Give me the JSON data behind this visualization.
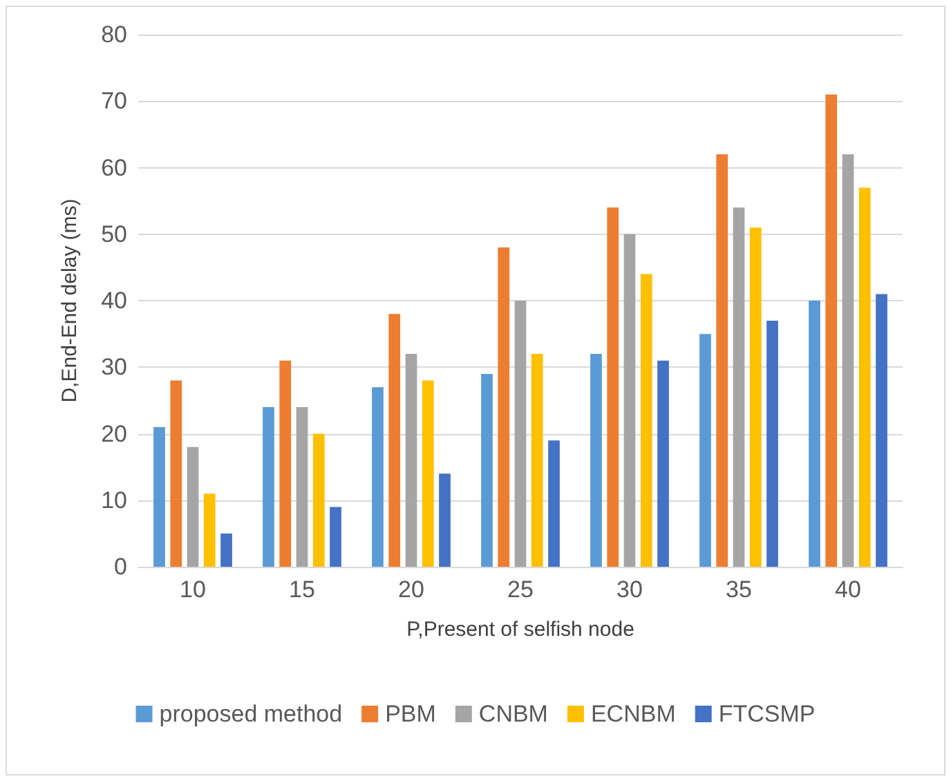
{
  "chart_data": {
    "type": "bar",
    "xlabel": "P,Present of selfish node",
    "ylabel": "D,End-End delay (ms)",
    "categories": [
      "10",
      "15",
      "20",
      "25",
      "30",
      "35",
      "40"
    ],
    "series": [
      {
        "name": "proposed method",
        "color": "#5b9bd5",
        "values": [
          21,
          24,
          27,
          29,
          32,
          35,
          40
        ]
      },
      {
        "name": "PBM",
        "color": "#ed7d31",
        "values": [
          28,
          31,
          38,
          48,
          54,
          62,
          71
        ]
      },
      {
        "name": "CNBM",
        "color": "#a5a5a5",
        "values": [
          18,
          24,
          32,
          40,
          50,
          54,
          62
        ]
      },
      {
        "name": "ECNBM",
        "color": "#ffc000",
        "values": [
          11,
          20,
          28,
          32,
          44,
          51,
          57
        ]
      },
      {
        "name": "FTCSMP",
        "color": "#4472c4",
        "values": [
          5,
          9,
          14,
          19,
          31,
          37,
          41
        ]
      }
    ],
    "ylim": [
      0,
      80
    ],
    "yticks": [
      0,
      10,
      20,
      30,
      40,
      50,
      60,
      70,
      80
    ],
    "grid": "y",
    "legend": "bottom"
  }
}
